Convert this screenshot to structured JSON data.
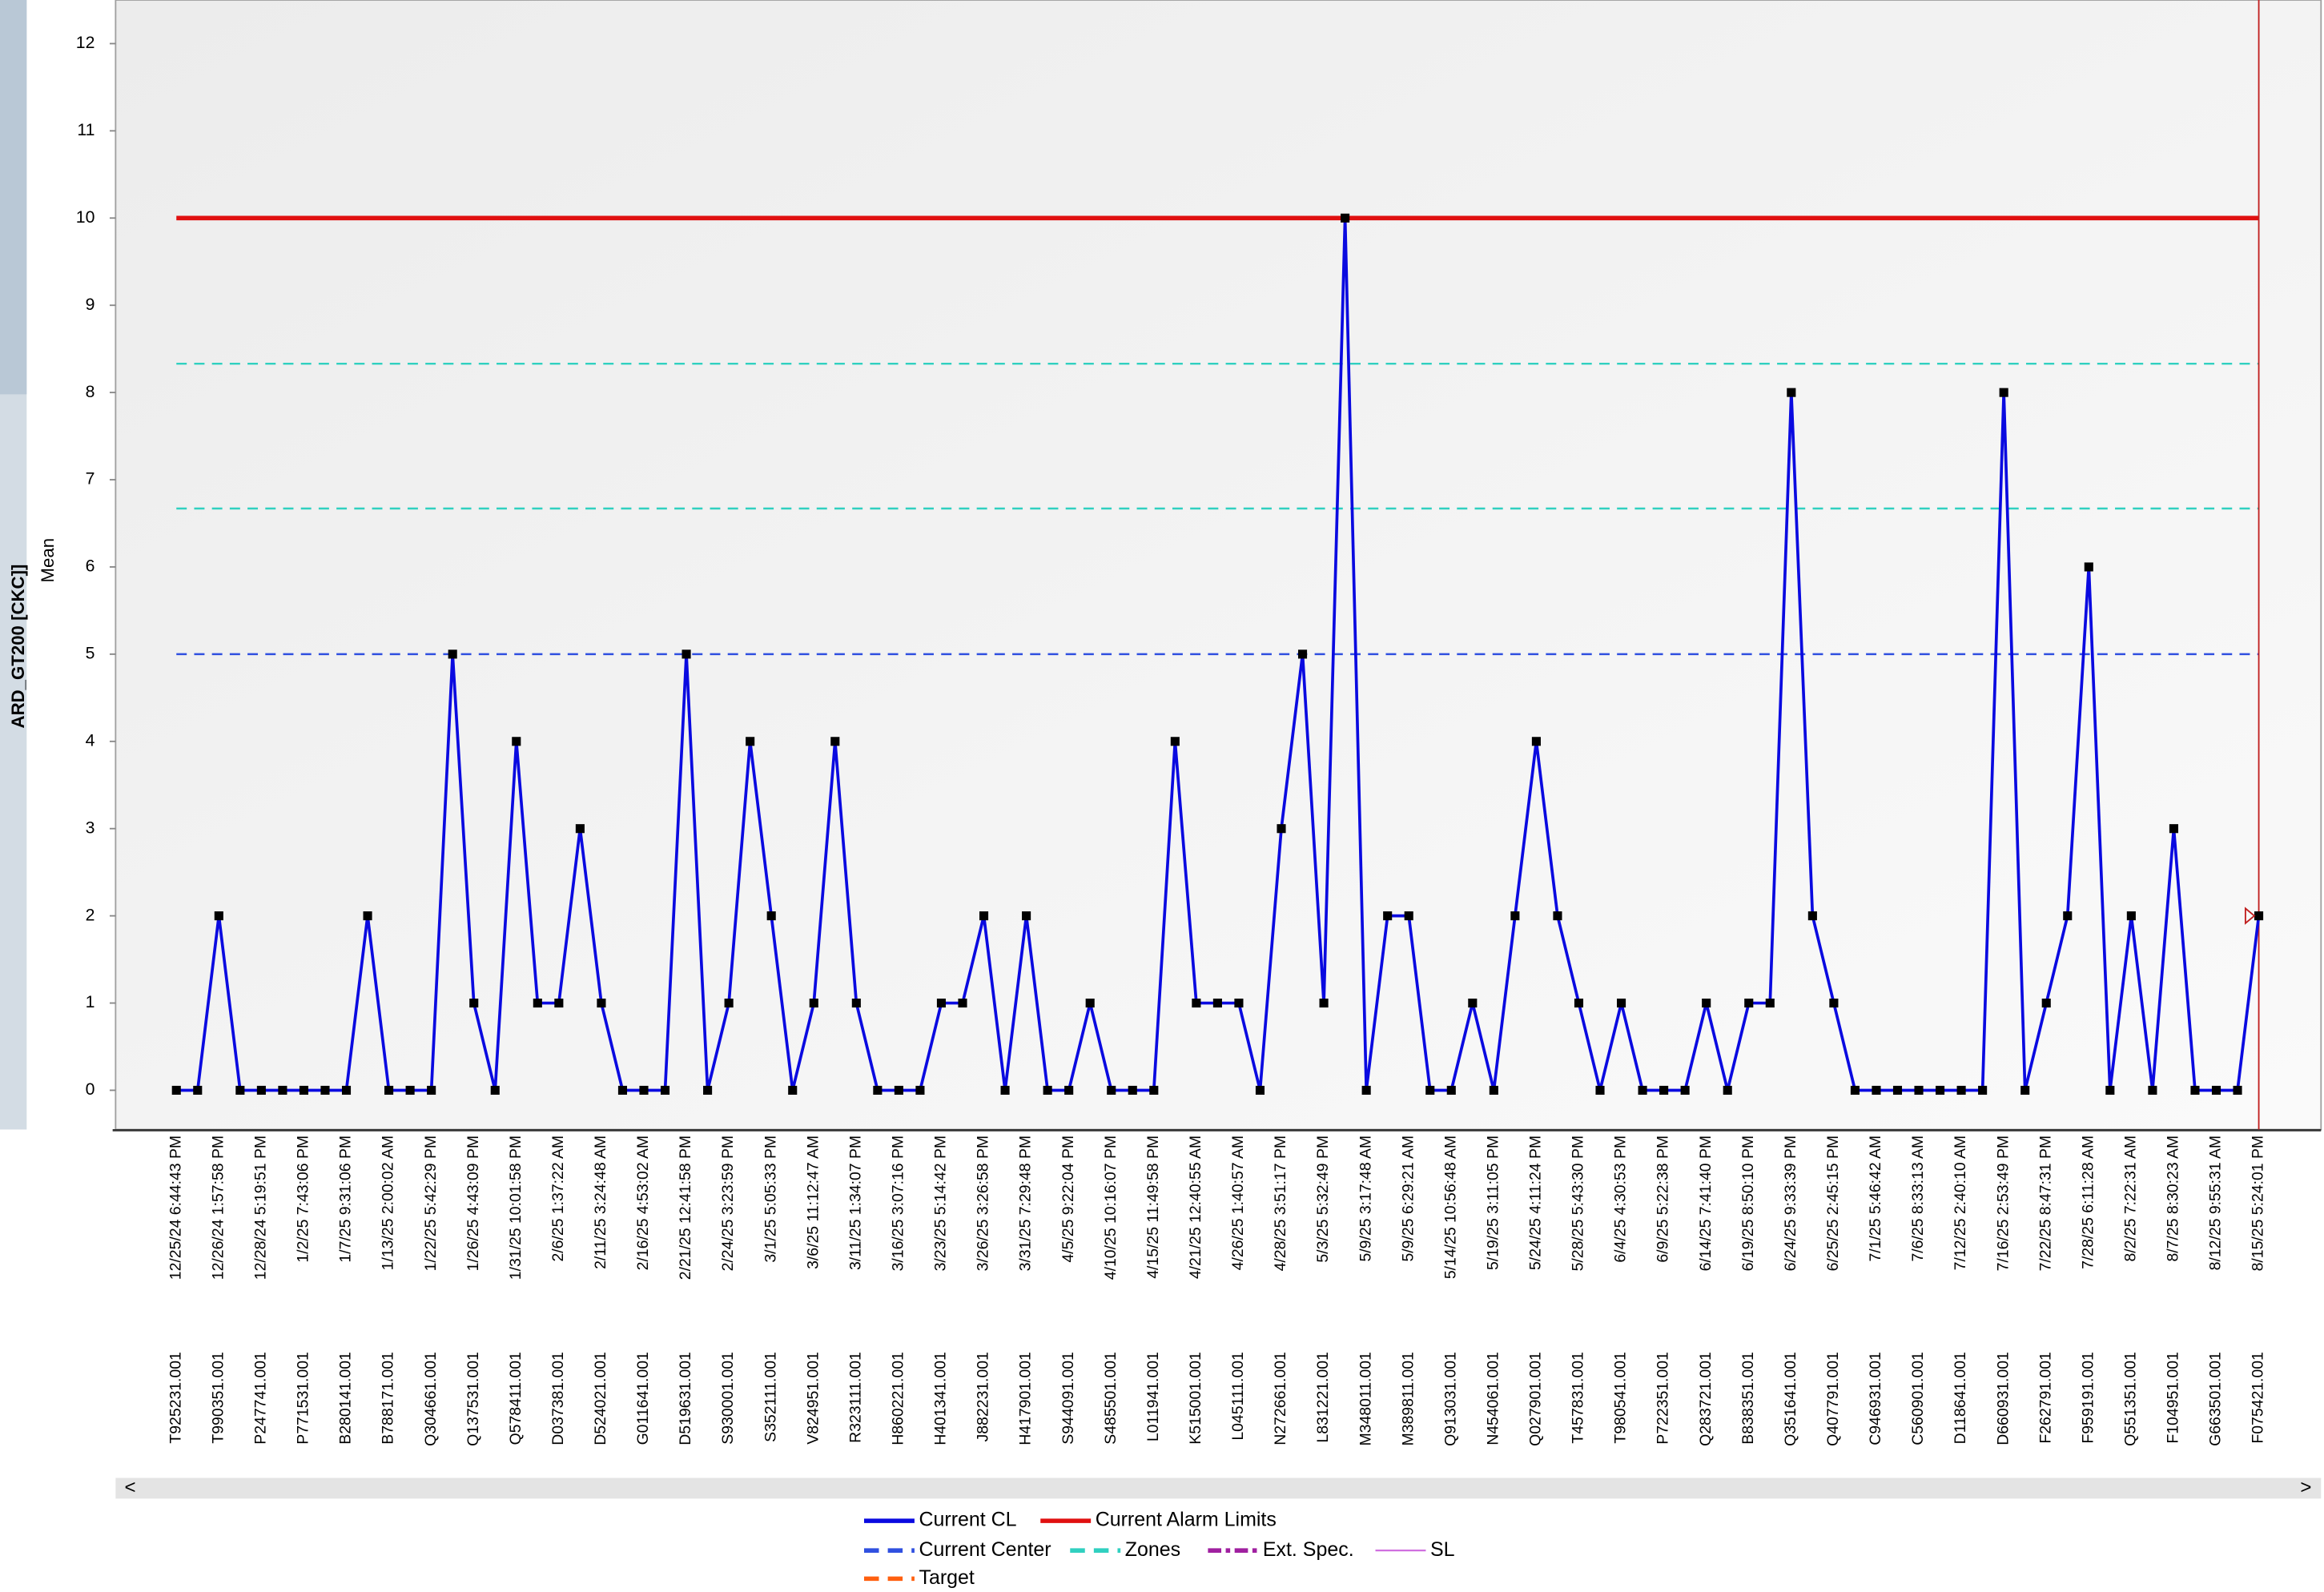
{
  "chart_data": {
    "type": "line",
    "y_axis_label": "Mean",
    "side_label": "ARD_GT200 [CKC]]",
    "ylim": [
      -0.45,
      12.5
    ],
    "yticks": [
      0,
      1,
      2,
      3,
      4,
      5,
      6,
      7,
      8,
      9,
      10,
      11,
      12
    ],
    "categories": [
      "12/25/24 6:44:43 PM",
      null,
      "12/26/24 1:57:58 PM",
      null,
      "12/28/24 5:19:51 PM",
      null,
      "1/2/25 7:43:06 PM",
      null,
      "1/7/25 9:31:06 PM",
      null,
      "1/13/25 2:00:02 AM",
      null,
      "1/22/25 5:42:29 PM",
      null,
      "1/26/25 4:43:09 PM",
      null,
      "1/31/25 10:01:58 PM",
      null,
      "2/6/25 1:37:22 AM",
      null,
      "2/11/25 3:24:48 AM",
      null,
      "2/16/25 4:53:02 AM",
      null,
      "2/21/25 12:41:58 PM",
      null,
      "2/24/25 3:23:59 PM",
      null,
      "3/1/25 5:05:33 PM",
      null,
      "3/6/25 11:12:47 AM",
      null,
      "3/11/25 1:34:07 PM",
      null,
      "3/16/25 3:07:16 PM",
      null,
      "3/23/25 5:14:42 PM",
      null,
      "3/26/25 3:26:58 PM",
      null,
      "3/31/25 7:29:48 PM",
      null,
      "4/5/25 9:22:04 PM",
      null,
      "4/10/25 10:16:07 PM",
      null,
      "4/15/25 11:49:58 PM",
      null,
      "4/21/25 12:40:55 AM",
      null,
      "4/26/25 1:40:57 AM",
      null,
      "4/28/25 3:51:17 PM",
      null,
      "5/3/25 5:32:49 PM",
      null,
      "5/9/25 3:17:48 AM",
      null,
      "5/9/25 6:29:21 AM",
      null,
      "5/14/25 10:56:48 AM",
      null,
      "5/19/25 3:11:05 PM",
      null,
      "5/24/25 4:11:24 PM",
      null,
      "5/28/25 5:43:30 PM",
      null,
      "6/4/25 4:30:53 PM",
      null,
      "6/9/25 5:22:38 PM",
      null,
      "6/14/25 7:41:40 PM",
      null,
      "6/19/25 8:50:10 PM",
      null,
      "6/24/25 9:33:39 PM",
      null,
      "6/25/25 2:45:15 PM",
      null,
      "7/1/25 5:46:42 AM",
      null,
      "7/6/25 8:33:13 AM",
      null,
      "7/12/25 2:40:10 AM",
      null,
      "7/16/25 2:53:49 PM",
      null,
      "7/22/25 8:47:31 PM",
      null,
      "7/28/25 6:11:28 AM",
      null,
      "8/2/25 7:22:31 AM",
      null,
      "8/7/25 8:30:23 AM",
      null,
      "8/12/25 9:55:31 AM",
      null,
      "8/15/25 5:24:01 PM"
    ],
    "sample_ids": [
      "T925231.001",
      null,
      "T990351.001",
      null,
      "P247741.001",
      null,
      "P771531.001",
      null,
      "B280141.001",
      null,
      "B788171.001",
      null,
      "Q304661.001",
      null,
      "Q137531.001",
      null,
      "Q578411.001",
      null,
      "D037381.001",
      null,
      "D524021.001",
      null,
      "G011641.001",
      null,
      "D519631.001",
      null,
      "S930001.001",
      null,
      "S352111.001",
      null,
      "V824951.001",
      null,
      "R323111.001",
      null,
      "H860221.001",
      null,
      "H401341.001",
      null,
      "J882231.001",
      null,
      "H417901.001",
      null,
      "S944091.001",
      null,
      "S485501.001",
      null,
      "L011941.001",
      null,
      "K515001.001",
      null,
      "L045111.001",
      null,
      "N272661.001",
      null,
      "L831221.001",
      null,
      "M348011.001",
      null,
      "M389811.001",
      null,
      "Q913031.001",
      null,
      "N454061.001",
      null,
      "Q027901.001",
      null,
      "T457831.001",
      null,
      "T980541.001",
      null,
      "P722351.001",
      null,
      "Q283721.001",
      null,
      "B838351.001",
      null,
      "Q351641.001",
      null,
      "Q407791.001",
      null,
      "C946931.001",
      null,
      "C560901.001",
      null,
      "D118641.001",
      null,
      "D660931.001",
      null,
      "F262791.001",
      null,
      "F959191.001",
      null,
      "Q551351.001",
      null,
      "F104951.001",
      null,
      "G663501.001",
      null,
      "F075421.001"
    ],
    "series": [
      {
        "name": "Current CL",
        "color": "#0a0ae0",
        "values": [
          0,
          0,
          2,
          0,
          0,
          0,
          0,
          0,
          0,
          2,
          0,
          0,
          0,
          5,
          1,
          0,
          4,
          1,
          1,
          3,
          1,
          0,
          0,
          0,
          5,
          0,
          1,
          4,
          2,
          0,
          1,
          4,
          1,
          0,
          0,
          0,
          1,
          1,
          2,
          0,
          2,
          0,
          0,
          1,
          0,
          0,
          0,
          4,
          1,
          1,
          1,
          0,
          3,
          5,
          1,
          10,
          0,
          2,
          2,
          0,
          0,
          1,
          0,
          2,
          4,
          2,
          1,
          0,
          1,
          0,
          0,
          0,
          1,
          0,
          1,
          1,
          8,
          2,
          1,
          0,
          0,
          0,
          0,
          0,
          0,
          0,
          8,
          0,
          1,
          2,
          6,
          0,
          2,
          0,
          3,
          0,
          0,
          0,
          2
        ]
      }
    ],
    "reference_lines": [
      {
        "name": "Current Alarm Limits",
        "color": "#e01010",
        "style": "solid",
        "values": [
          10
        ]
      },
      {
        "name": "Current Center",
        "color": "#3050e0",
        "style": "dashed",
        "values": [
          5
        ]
      },
      {
        "name": "Zones",
        "color": "#30d0c0",
        "style": "dashed",
        "values": [
          6.67,
          8.33
        ]
      },
      {
        "name": "Ext. Spec.",
        "color": "#a020a0",
        "style": "dashdot"
      },
      {
        "name": "SL",
        "color": "#d070e0",
        "style": "thin"
      },
      {
        "name": "Target",
        "color": "#ff6010",
        "style": "dashed"
      }
    ]
  }
}
